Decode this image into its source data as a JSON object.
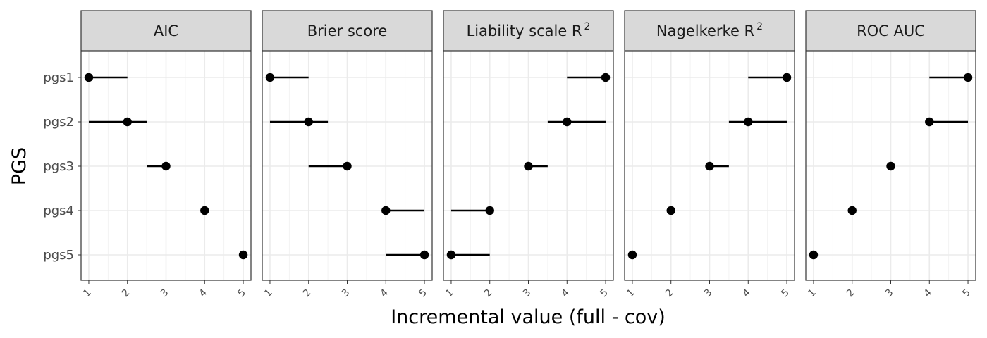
{
  "chart_data": {
    "type": "dot-range",
    "xlabel": "Incremental value (full - cov)",
    "ylabel": "PGS",
    "categories": [
      "pgs1",
      "pgs2",
      "pgs3",
      "pgs4",
      "pgs5"
    ],
    "xlim": [
      0.8,
      5.2
    ],
    "xticks": [
      1,
      2,
      3,
      4,
      5
    ],
    "grid": true,
    "point_color": "#000000",
    "panels": [
      {
        "title": "AIC",
        "title_sup": "",
        "points": [
          {
            "y": "pgs1",
            "x": 1,
            "lo": 1,
            "hi": 2
          },
          {
            "y": "pgs2",
            "x": 2,
            "lo": 1,
            "hi": 2.5
          },
          {
            "y": "pgs3",
            "x": 3,
            "lo": 2.5,
            "hi": 3
          },
          {
            "y": "pgs4",
            "x": 4,
            "lo": 4,
            "hi": 4
          },
          {
            "y": "pgs5",
            "x": 5,
            "lo": 5,
            "hi": 5
          }
        ]
      },
      {
        "title": "Brier score",
        "title_sup": "",
        "points": [
          {
            "y": "pgs1",
            "x": 1,
            "lo": 1,
            "hi": 2
          },
          {
            "y": "pgs2",
            "x": 2,
            "lo": 1,
            "hi": 2.5
          },
          {
            "y": "pgs3",
            "x": 3,
            "lo": 2,
            "hi": 3
          },
          {
            "y": "pgs4",
            "x": 4,
            "lo": 4,
            "hi": 5
          },
          {
            "y": "pgs5",
            "x": 5,
            "lo": 4,
            "hi": 5
          }
        ]
      },
      {
        "title": "Liability scale R",
        "title_sup": "2",
        "points": [
          {
            "y": "pgs1",
            "x": 5,
            "lo": 4,
            "hi": 5
          },
          {
            "y": "pgs2",
            "x": 4,
            "lo": 3.5,
            "hi": 5
          },
          {
            "y": "pgs3",
            "x": 3,
            "lo": 3,
            "hi": 3.5
          },
          {
            "y": "pgs4",
            "x": 2,
            "lo": 1,
            "hi": 2
          },
          {
            "y": "pgs5",
            "x": 1,
            "lo": 1,
            "hi": 2
          }
        ]
      },
      {
        "title": "Nagelkerke R",
        "title_sup": "2",
        "points": [
          {
            "y": "pgs1",
            "x": 5,
            "lo": 4,
            "hi": 5
          },
          {
            "y": "pgs2",
            "x": 4,
            "lo": 3.5,
            "hi": 5
          },
          {
            "y": "pgs3",
            "x": 3,
            "lo": 3,
            "hi": 3.5
          },
          {
            "y": "pgs4",
            "x": 2,
            "lo": 2,
            "hi": 2
          },
          {
            "y": "pgs5",
            "x": 1,
            "lo": 1,
            "hi": 1
          }
        ]
      },
      {
        "title": "ROC AUC",
        "title_sup": "",
        "points": [
          {
            "y": "pgs1",
            "x": 5,
            "lo": 4,
            "hi": 5
          },
          {
            "y": "pgs2",
            "x": 4,
            "lo": 4,
            "hi": 5
          },
          {
            "y": "pgs3",
            "x": 3,
            "lo": 3,
            "hi": 3
          },
          {
            "y": "pgs4",
            "x": 2,
            "lo": 2,
            "hi": 2
          },
          {
            "y": "pgs5",
            "x": 1,
            "lo": 1,
            "hi": 1
          }
        ]
      }
    ]
  }
}
